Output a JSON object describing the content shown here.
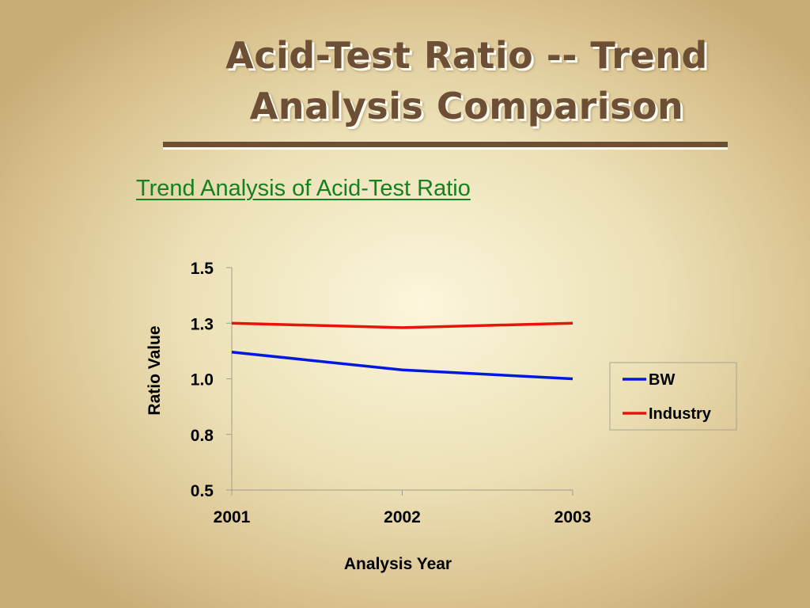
{
  "slide": {
    "title_line1": "Acid-Test Ratio -- Trend",
    "title_line2": "Analysis Comparison",
    "subtitle": "Trend Analysis of Acid-Test Ratio"
  },
  "chart_data": {
    "type": "line",
    "x": [
      "2001",
      "2002",
      "2003"
    ],
    "series": [
      {
        "name": "BW",
        "color": "#0018e0",
        "values": [
          1.12,
          1.04,
          1.0
        ]
      },
      {
        "name": "Industry",
        "color": "#e8140c",
        "values": [
          1.25,
          1.23,
          1.25
        ]
      }
    ],
    "xlabel": "Analysis Year",
    "ylabel": "Ratio Value",
    "ylim": [
      0.5,
      1.5
    ],
    "yticks": [
      1.5,
      1.25,
      1.0,
      0.75,
      0.5
    ],
    "ytick_labels": [
      "1.5",
      "1.3",
      "1.0",
      "0.8",
      "0.5"
    ],
    "grid": false,
    "legend_position": "right"
  }
}
